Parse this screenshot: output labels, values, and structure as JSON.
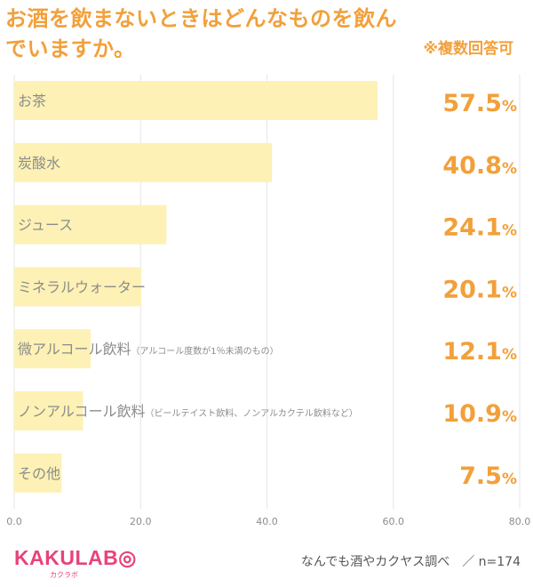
{
  "title": "お酒を飲まないときはどんなものを飲んでいますか。",
  "note": "※複数回答可",
  "chart_data": {
    "type": "bar",
    "orientation": "horizontal",
    "categories": [
      {
        "label": "お茶",
        "sub": ""
      },
      {
        "label": "炭酸水",
        "sub": ""
      },
      {
        "label": "ジュース",
        "sub": ""
      },
      {
        "label": "ミネラルウォーター",
        "sub": ""
      },
      {
        "label": "微アルコール飲料",
        "sub": "（アルコール度数が1％未満のもの）"
      },
      {
        "label": "ノンアルコール飲料",
        "sub": "（ビールテイスト飲料、ノンアルカクテル飲料など）"
      },
      {
        "label": "その他",
        "sub": ""
      }
    ],
    "values": [
      57.5,
      40.8,
      24.1,
      20.1,
      12.1,
      10.9,
      7.5
    ],
    "value_labels": [
      "57.5",
      "40.8",
      "24.1",
      "20.1",
      "12.1",
      "10.9",
      "7.5"
    ],
    "unit": "%",
    "xlim": [
      0,
      80
    ],
    "x_ticks": [
      "0.0",
      "20.0",
      "40.0",
      "60.0",
      "80.0"
    ],
    "grid": true,
    "bar_color": "#fdf1b5",
    "accent_color": "#f2a03a"
  },
  "footer": {
    "logo": "KAKULAB◎",
    "logo_sub": "カクラボ",
    "source": "なんでも酒やカクヤス調べ　／ n=174"
  }
}
